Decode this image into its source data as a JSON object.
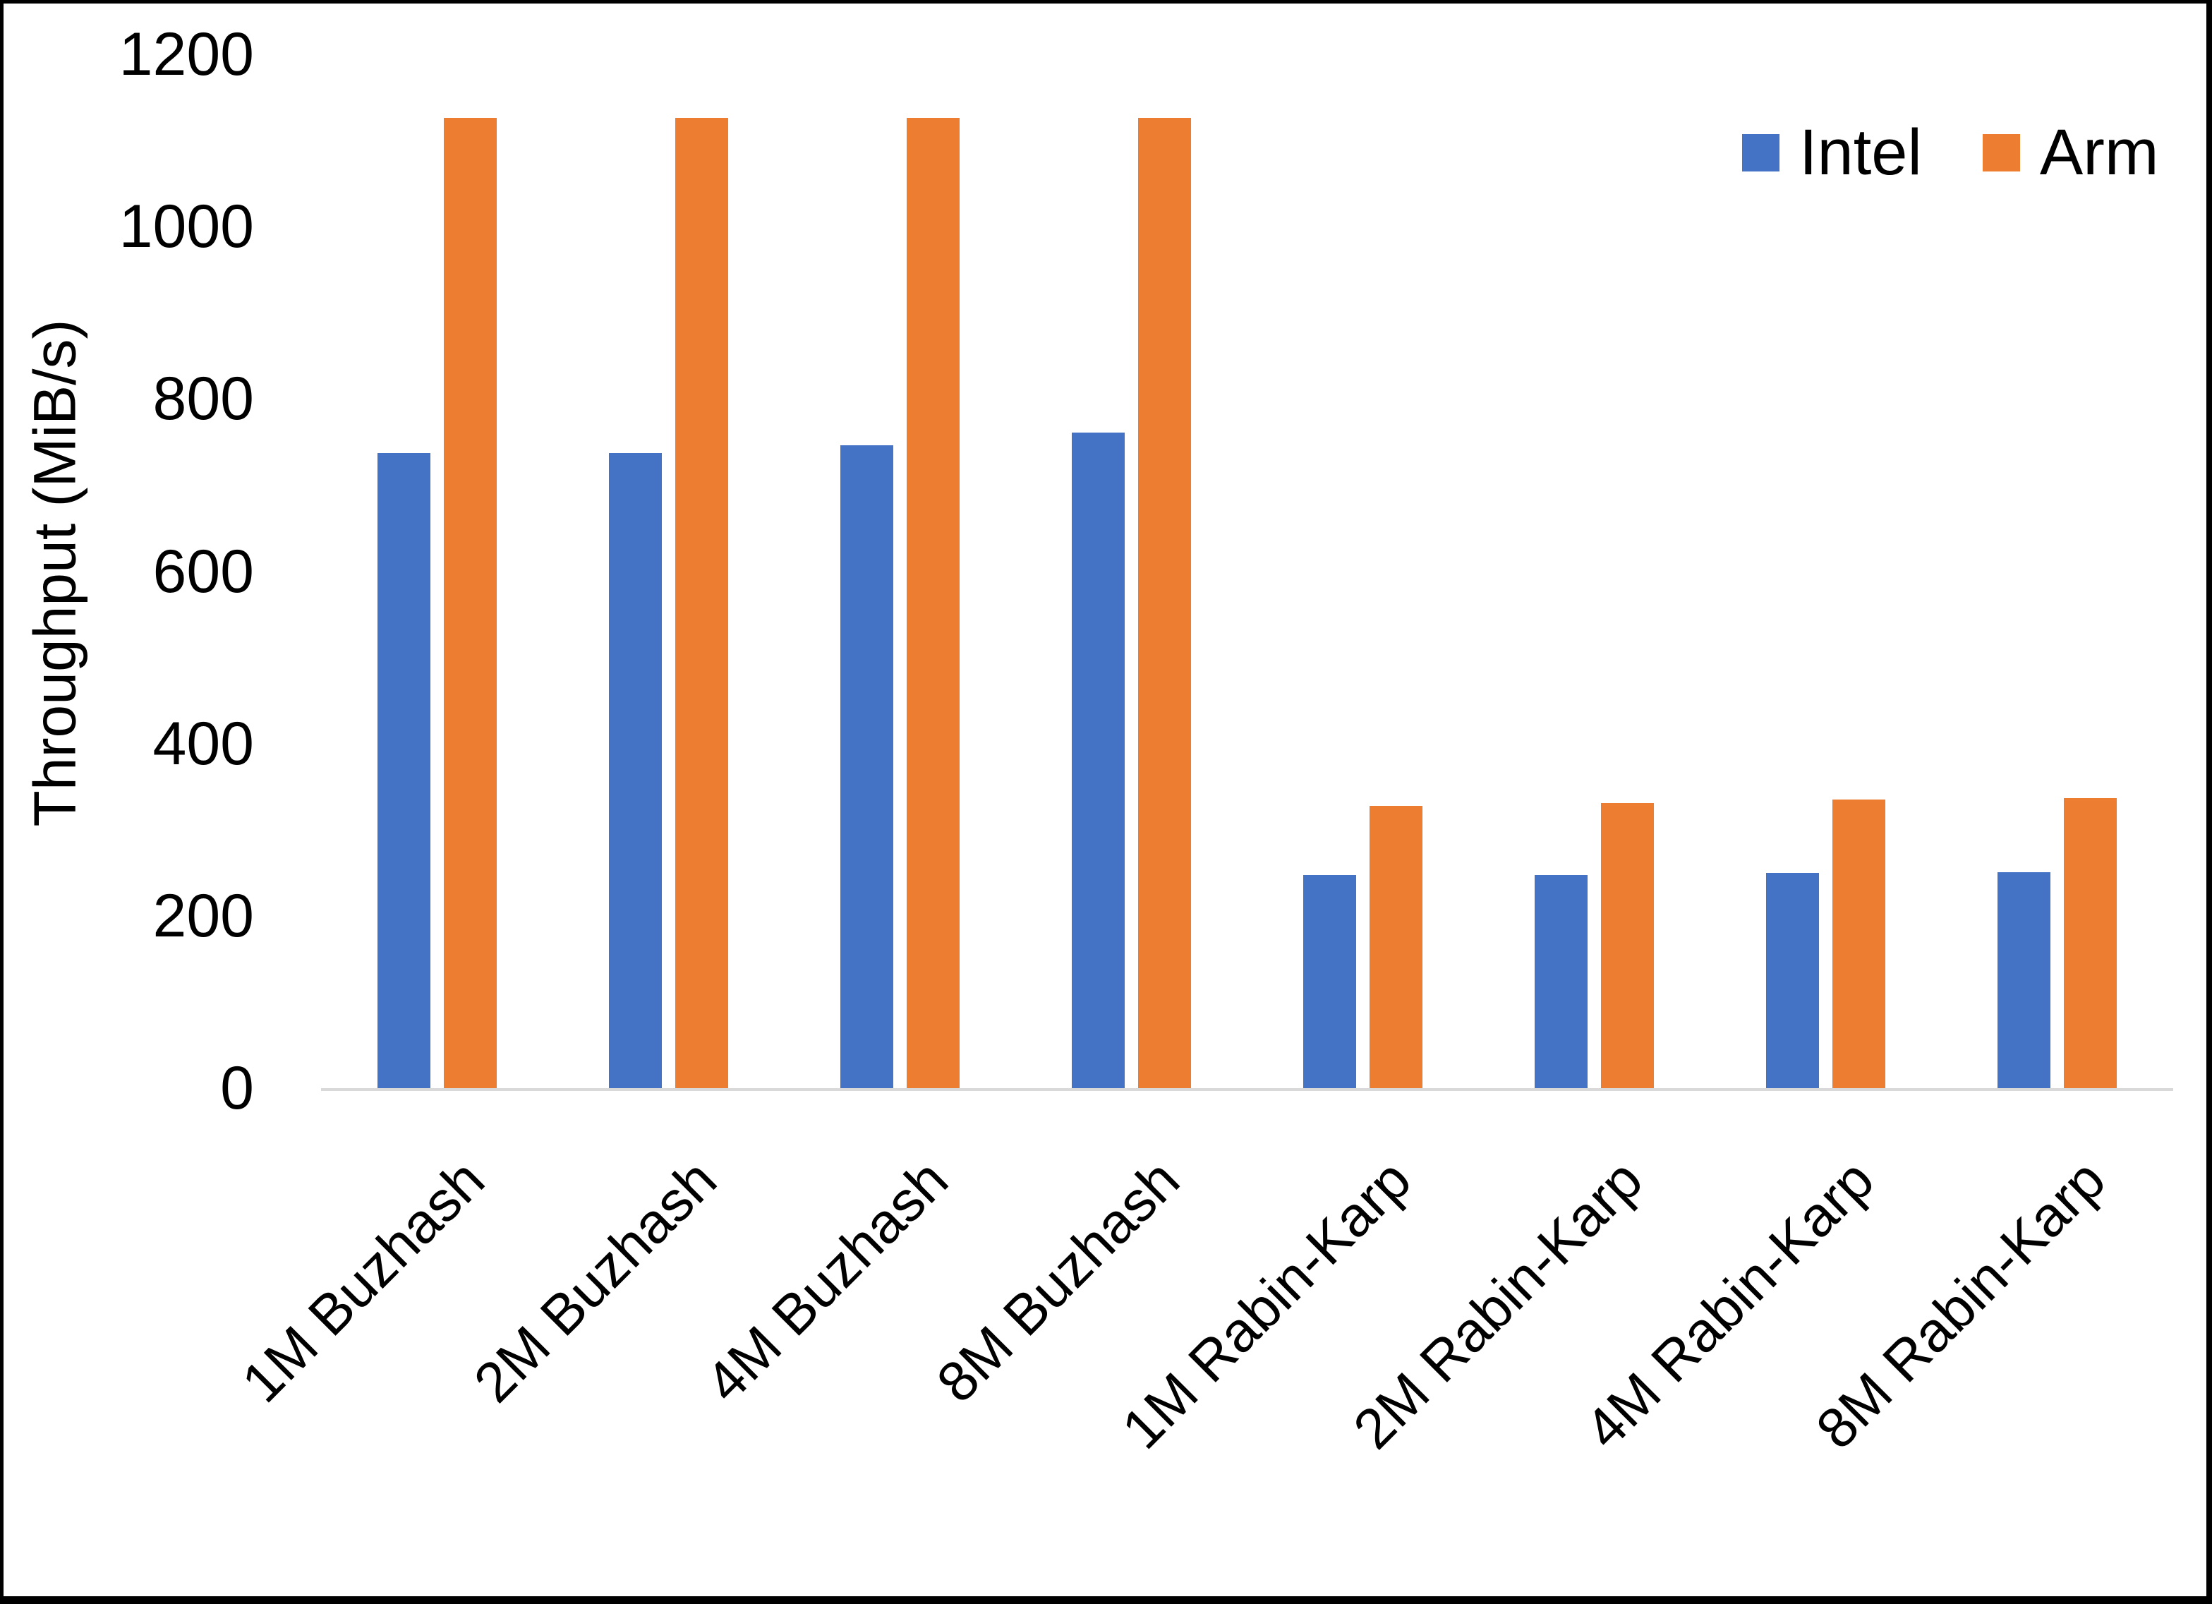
{
  "page": {
    "background": "#FFFFFF",
    "border_color": "#000000"
  },
  "chart_data": {
    "type": "bar",
    "title": "",
    "categories": [
      "1M Buzhash",
      "2M Buzhash",
      "4M Buzhash",
      "8M Buzhash",
      "1M Rabin-Karp",
      "2M Rabin-Karp",
      "4M Rabin-Karp",
      "8M Rabin-Karp"
    ],
    "series": [
      {
        "name": "Intel",
        "color": "#4472C4",
        "values": [
          737,
          737,
          746,
          761,
          247,
          247,
          250,
          251
        ]
      },
      {
        "name": "Arm",
        "color": "#ED7D31",
        "values": [
          1126,
          1126,
          1126,
          1126,
          328,
          331,
          335,
          337
        ]
      }
    ],
    "xlabel": "",
    "ylabel": "Throughput (MiB/s)",
    "ylim": [
      0,
      1200
    ],
    "yticks": [
      0,
      200,
      400,
      600,
      800,
      1000,
      1200
    ],
    "grid": false,
    "legend_position": "top-right",
    "axis_line_color": "#D9D9D9",
    "text_color": "#000000"
  }
}
